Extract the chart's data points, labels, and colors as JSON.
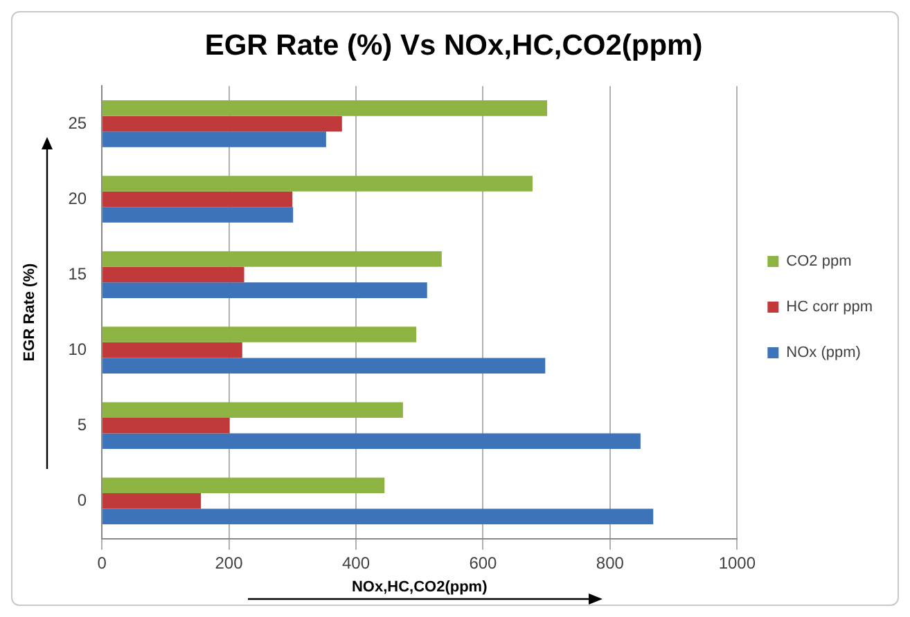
{
  "chart_data": {
    "type": "bar",
    "orientation": "horizontal",
    "title": "EGR Rate (%) Vs NOx,HC,CO2(ppm)",
    "xlabel": "NOx,HC,CO2(ppm)",
    "ylabel": "EGR Rate (%)",
    "categories": [
      "25",
      "20",
      "15",
      "10",
      "5",
      "0"
    ],
    "series": [
      {
        "name": "CO2 ppm",
        "color": "#8db443",
        "values": [
          701,
          678,
          535,
          495,
          474,
          445
        ]
      },
      {
        "name": "HC corr ppm",
        "color": "#c0393b",
        "values": [
          378,
          300,
          224,
          221,
          201,
          156
        ]
      },
      {
        "name": "NOx (ppm)",
        "color": "#3d73b9",
        "values": [
          353,
          301,
          512,
          698,
          848,
          868
        ]
      }
    ],
    "xlim": [
      0,
      1000
    ],
    "xticks": [
      0,
      200,
      400,
      600,
      800,
      1000
    ],
    "grid": "x",
    "legend": "right"
  }
}
